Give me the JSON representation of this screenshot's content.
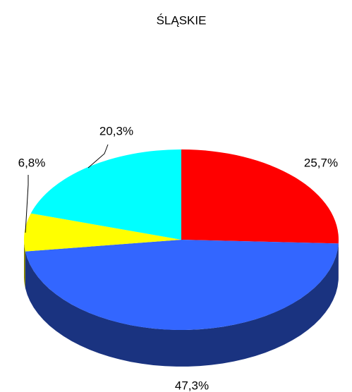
{
  "chart_data": {
    "type": "pie",
    "title": "ŚLĄSKIE",
    "categories": [
      null,
      null,
      null,
      null
    ],
    "values": [
      25.7,
      47.3,
      6.8,
      20.3
    ],
    "value_labels": [
      "25,7%",
      "47,3%",
      "6,8%",
      "20,3%"
    ],
    "colors": [
      "#ff0000",
      "#3366ff",
      "#ffff00",
      "#00ffff"
    ],
    "three_d": true
  }
}
